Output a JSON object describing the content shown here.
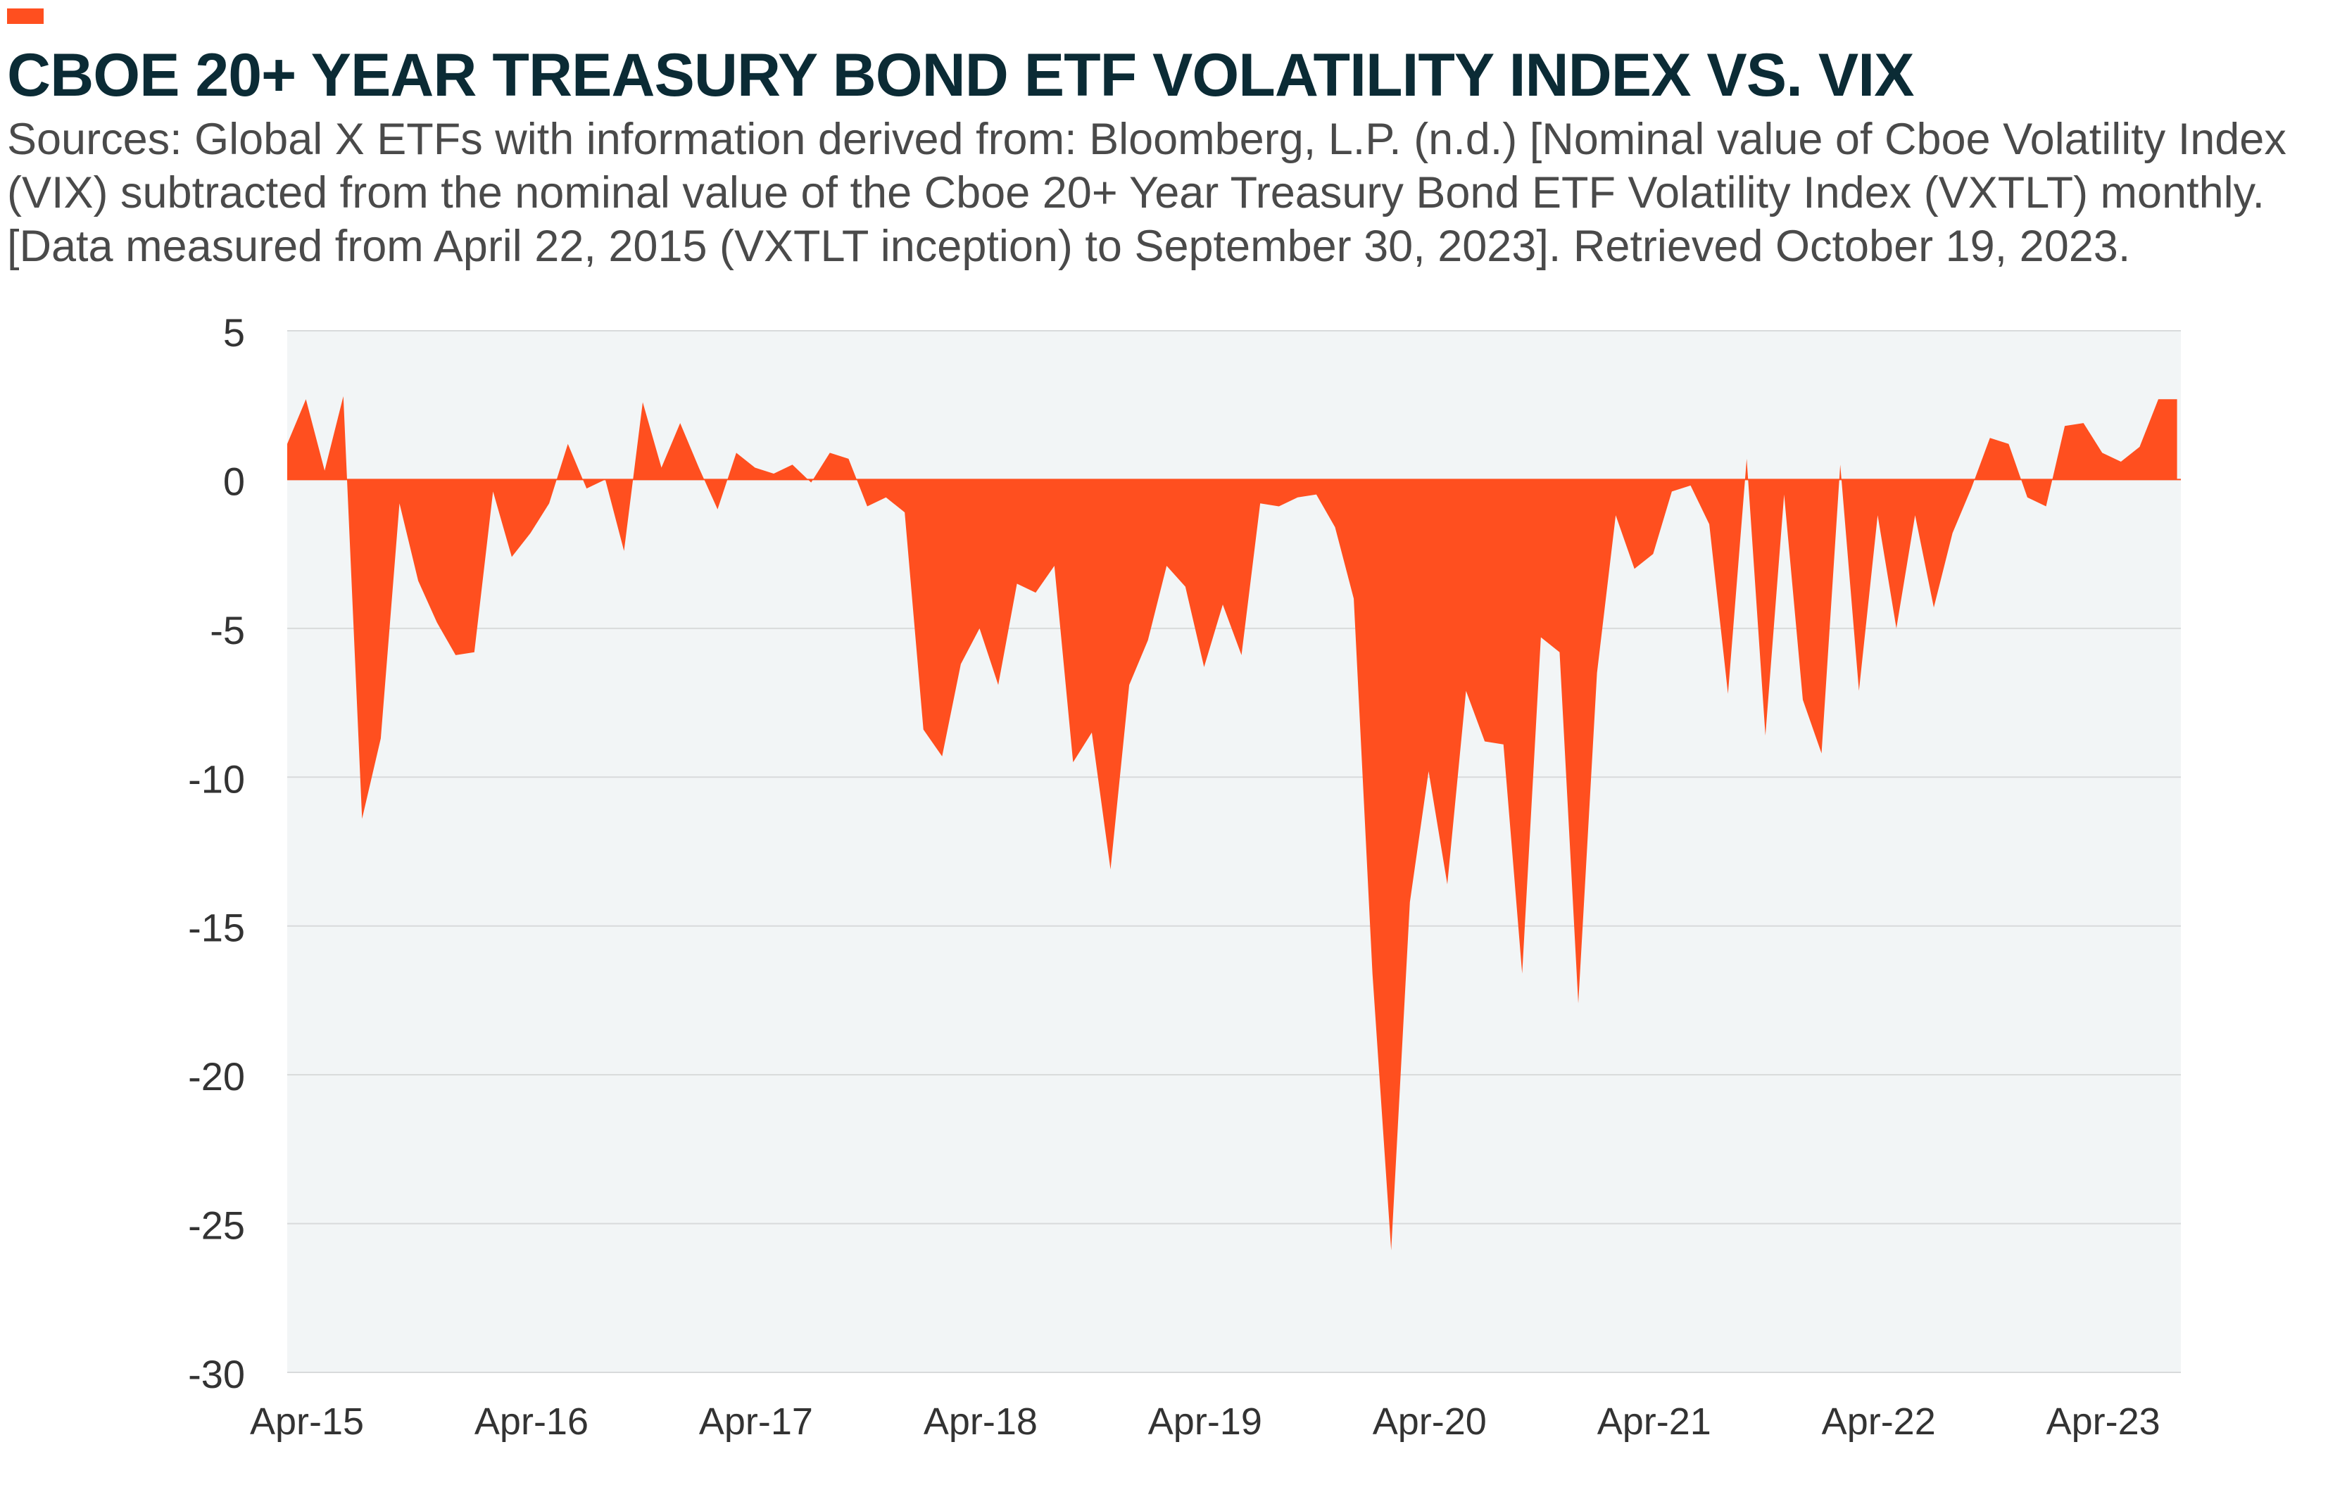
{
  "header": {
    "title": "CBOE 20+ YEAR TREASURY BOND ETF VOLATILITY INDEX VS. VIX",
    "subtitle_lines": [
      "Sources: Global X ETFs with information derived from: Bloomberg, L.P. (n.d.) [Nominal value of Cboe Volatility Index",
      "(VIX) subtracted from the nominal value of the Cboe 20+ Year Treasury Bond ETF Volatility Index (VXTLT) monthly.",
      "[Data measured from April 22, 2015 (VXTLT inception) to September 30, 2023]. Retrieved October 19, 2023."
    ]
  },
  "colors": {
    "accent": "#ff4f1f",
    "area": "#ff4f1f",
    "plot_background": "#f2f5f6",
    "gridline": "#d8dadb",
    "title": "#0b2b35"
  },
  "chart_data": {
    "type": "area",
    "title": "CBOE 20+ YEAR TREASURY BOND ETF VOLATILITY INDEX VS. VIX",
    "xlabel": "",
    "ylabel": "",
    "ylim": [
      -30,
      5
    ],
    "yticks": [
      5,
      0,
      -5,
      -10,
      -15,
      -20,
      -25,
      -30
    ],
    "xtick_labels": [
      "Apr-15",
      "Apr-16",
      "Apr-17",
      "Apr-18",
      "Apr-19",
      "Apr-20",
      "Apr-21",
      "Apr-22",
      "Apr-23"
    ],
    "grid": true,
    "legend": "none",
    "start_month": "Apr-15",
    "values": [
      1.2,
      2.7,
      0.3,
      2.8,
      -11.4,
      -8.7,
      -0.8,
      -3.4,
      -4.8,
      -5.9,
      -5.8,
      -0.4,
      -2.6,
      -1.8,
      -0.8,
      1.2,
      -0.3,
      0.0,
      -2.4,
      2.6,
      0.4,
      1.9,
      0.4,
      -1.0,
      0.9,
      0.4,
      0.2,
      0.5,
      -0.1,
      0.9,
      0.7,
      -0.9,
      -0.6,
      -1.1,
      -8.4,
      -9.3,
      -6.2,
      -5.0,
      -6.9,
      -3.5,
      -3.8,
      -2.9,
      -9.5,
      -8.5,
      -13.1,
      -6.9,
      -5.4,
      -2.9,
      -3.6,
      -6.3,
      -4.2,
      -5.9,
      -0.8,
      -0.9,
      -0.6,
      -0.5,
      -1.6,
      -4.0,
      -16.6,
      -25.9,
      -14.2,
      -9.8,
      -13.6,
      -7.1,
      -8.8,
      -8.9,
      -16.6,
      -5.3,
      -5.8,
      -17.6,
      -6.5,
      -1.2,
      -3.0,
      -2.5,
      -0.4,
      -0.2,
      -1.5,
      -7.2,
      0.7,
      -8.6,
      -0.5,
      -7.4,
      -9.2,
      0.5,
      -7.1,
      -1.2,
      -5.0,
      -1.2,
      -4.3,
      -1.8,
      -0.3,
      1.4,
      1.2,
      -0.6,
      -0.9,
      1.8,
      1.9,
      0.9,
      0.6,
      1.1,
      2.7,
      2.7
    ]
  }
}
